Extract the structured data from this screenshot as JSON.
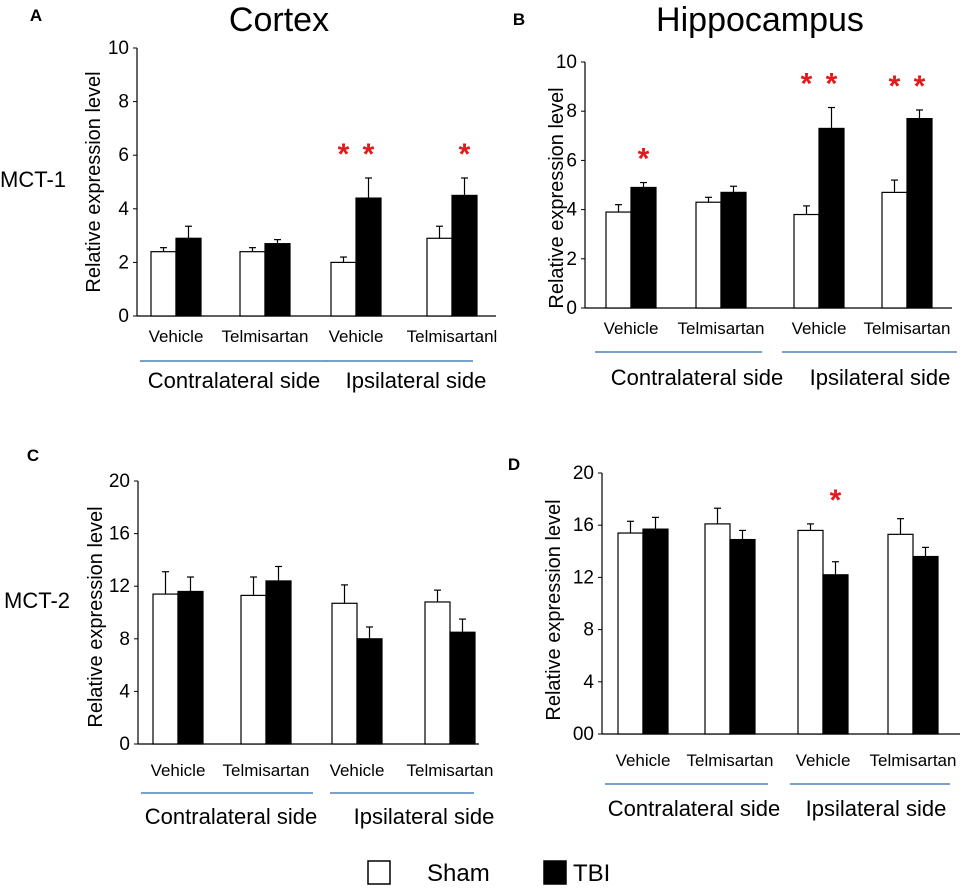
{
  "figure": {
    "titles": {
      "cortex": "Cortex",
      "hippocampus": "Hippocampus"
    },
    "row_labels": {
      "mct1": "MCT-1",
      "mct2": "MCT-2"
    },
    "legend": [
      {
        "label": "Sham",
        "color": "#ffffff"
      },
      {
        "label": "TBI",
        "color": "#000000"
      }
    ],
    "colors": {
      "sham": "#ffffff",
      "tbi": "#000000",
      "asterisk": "#e31a1c",
      "group_line": "#4f81bd"
    }
  },
  "chart_data": [
    {
      "type": "bar",
      "panel": "A",
      "ylabel": "Relative expression level",
      "ylim": [
        0,
        10
      ],
      "yticks": [
        "0",
        "2",
        "4",
        "6",
        "8",
        "10"
      ],
      "categories": [
        "Vehicle",
        "Telmisartan",
        "Vehicle",
        "Telmisartanl"
      ],
      "groups": [
        "Contralateral side",
        "Ipsilateral side"
      ],
      "series": [
        {
          "name": "Sham",
          "values": [
            2.4,
            2.4,
            2.0,
            2.9
          ],
          "errors": [
            0.15,
            0.15,
            0.2,
            0.45
          ]
        },
        {
          "name": "TBI",
          "values": [
            2.9,
            2.7,
            4.4,
            4.5
          ],
          "errors": [
            0.45,
            0.15,
            0.75,
            0.65
          ]
        }
      ],
      "annotations": [
        {
          "category": 2,
          "series": 0,
          "text": "*"
        },
        {
          "category": 2,
          "series": 1,
          "text": "*"
        },
        {
          "category": 3,
          "series": 1,
          "text": "*"
        }
      ]
    },
    {
      "type": "bar",
      "panel": "B",
      "ylabel": "Relative expression level",
      "ylim": [
        0,
        10
      ],
      "yticks": [
        "0",
        "2",
        "4",
        "6",
        "8",
        "10"
      ],
      "categories": [
        "Vehicle",
        "Telmisartan",
        "Vehicle",
        "Telmisartan"
      ],
      "groups": [
        "Contralateral side",
        "Ipsilateral side"
      ],
      "series": [
        {
          "name": "Sham",
          "values": [
            3.9,
            4.3,
            3.8,
            4.7
          ],
          "errors": [
            0.3,
            0.2,
            0.35,
            0.5
          ]
        },
        {
          "name": "TBI",
          "values": [
            4.9,
            4.7,
            7.3,
            7.7
          ],
          "errors": [
            0.2,
            0.25,
            0.85,
            0.35
          ]
        }
      ],
      "annotations": [
        {
          "category": 0,
          "series": 1,
          "text": "*"
        },
        {
          "category": 2,
          "series": 0,
          "text": "*"
        },
        {
          "category": 2,
          "series": 1,
          "text": "*"
        },
        {
          "category": 3,
          "series": 0,
          "text": "*"
        },
        {
          "category": 3,
          "series": 1,
          "text": "*"
        }
      ]
    },
    {
      "type": "bar",
      "panel": "C",
      "ylabel": "Relative expression level",
      "ylim": [
        0,
        20
      ],
      "yticks": [
        "0",
        "4",
        "8",
        "12",
        "16",
        "20"
      ],
      "categories": [
        "Vehicle",
        "Telmisartan",
        "Vehicle",
        "Telmisartan"
      ],
      "groups": [
        "Contralateral side",
        "Ipsilateral side"
      ],
      "series": [
        {
          "name": "Sham",
          "values": [
            11.4,
            11.3,
            10.7,
            10.8
          ],
          "errors": [
            1.7,
            1.4,
            1.4,
            0.9
          ]
        },
        {
          "name": "TBI",
          "values": [
            11.6,
            12.4,
            8.0,
            8.5
          ],
          "errors": [
            1.1,
            1.1,
            0.9,
            1.0
          ]
        }
      ],
      "annotations": []
    },
    {
      "type": "bar",
      "panel": "D",
      "ylabel": "Relative expression level",
      "ylim": [
        0,
        20
      ],
      "yticks": [
        "00",
        "4",
        "8",
        "12",
        "16",
        "20"
      ],
      "categories": [
        "Vehicle",
        "Telmisartan",
        "Vehicle",
        "Telmisartan"
      ],
      "groups": [
        "Contralateral side",
        "Ipsilateral side"
      ],
      "series": [
        {
          "name": "Sham",
          "values": [
            15.4,
            16.1,
            15.6,
            15.3
          ],
          "errors": [
            0.9,
            1.2,
            0.5,
            1.2
          ]
        },
        {
          "name": "TBI",
          "values": [
            15.7,
            14.9,
            12.2,
            13.6
          ],
          "errors": [
            0.9,
            0.7,
            1.0,
            0.7
          ]
        }
      ],
      "annotations": [
        {
          "category": 2,
          "series": 1,
          "text": "*"
        }
      ]
    }
  ]
}
